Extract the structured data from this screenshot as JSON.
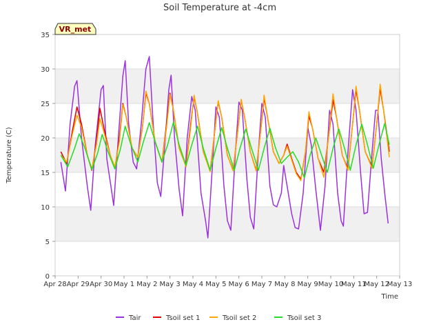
{
  "chart_data": {
    "type": "line",
    "title": "Soil Temperature at -4cm",
    "xlabel": "Time",
    "ylabel": "Temperature (C)",
    "badge": "VR_met",
    "ylim": [
      0,
      35
    ],
    "yticks": [
      0,
      5,
      10,
      15,
      20,
      25,
      30,
      35
    ],
    "xlim": [
      0,
      15
    ],
    "xticks": [
      {
        "v": 0,
        "label": "Apr 28"
      },
      {
        "v": 1,
        "label": "Apr 29"
      },
      {
        "v": 2,
        "label": "Apr 30"
      },
      {
        "v": 3,
        "label": "May 1"
      },
      {
        "v": 4,
        "label": "May 2"
      },
      {
        "v": 5,
        "label": "May 3"
      },
      {
        "v": 6,
        "label": "May 4"
      },
      {
        "v": 7,
        "label": "May 5"
      },
      {
        "v": 8,
        "label": "May 6"
      },
      {
        "v": 9,
        "label": "May 7"
      },
      {
        "v": 10,
        "label": "May 8"
      },
      {
        "v": 11,
        "label": "May 9"
      },
      {
        "v": 12,
        "label": "May 10"
      },
      {
        "v": 13,
        "label": "May 11"
      },
      {
        "v": 14,
        "label": "May 12"
      },
      {
        "v": 15,
        "label": "May 13"
      }
    ],
    "grid": true,
    "legend_position": "bottom",
    "series": [
      {
        "name": "Tair",
        "color": "#9b30e0",
        "points": [
          [
            0.25,
            16.5
          ],
          [
            0.45,
            12.3
          ],
          [
            0.65,
            22
          ],
          [
            0.85,
            27.5
          ],
          [
            0.95,
            28.3
          ],
          [
            1.15,
            20
          ],
          [
            1.4,
            13
          ],
          [
            1.55,
            9.5
          ],
          [
            1.75,
            19
          ],
          [
            2.0,
            27
          ],
          [
            2.1,
            27.6
          ],
          [
            2.25,
            17
          ],
          [
            2.45,
            12.5
          ],
          [
            2.55,
            10.2
          ],
          [
            2.75,
            20
          ],
          [
            2.95,
            29
          ],
          [
            3.05,
            31.2
          ],
          [
            3.2,
            22
          ],
          [
            3.4,
            16.5
          ],
          [
            3.55,
            15.5
          ],
          [
            3.75,
            22
          ],
          [
            3.95,
            30
          ],
          [
            4.1,
            31.8
          ],
          [
            4.25,
            23
          ],
          [
            4.45,
            13.5
          ],
          [
            4.6,
            11.5
          ],
          [
            4.8,
            20
          ],
          [
            4.95,
            27
          ],
          [
            5.05,
            29.1
          ],
          [
            5.2,
            20
          ],
          [
            5.4,
            12.5
          ],
          [
            5.55,
            8.7
          ],
          [
            5.75,
            20
          ],
          [
            5.95,
            26
          ],
          [
            6.1,
            24
          ],
          [
            6.35,
            12
          ],
          [
            6.55,
            8
          ],
          [
            6.65,
            5.5
          ],
          [
            6.85,
            16
          ],
          [
            7.0,
            24.5
          ],
          [
            7.15,
            23
          ],
          [
            7.35,
            13
          ],
          [
            7.5,
            8
          ],
          [
            7.65,
            6.6
          ],
          [
            7.85,
            18
          ],
          [
            8.0,
            25.2
          ],
          [
            8.15,
            24
          ],
          [
            8.35,
            14
          ],
          [
            8.5,
            8.5
          ],
          [
            8.65,
            6.8
          ],
          [
            8.85,
            18
          ],
          [
            9.0,
            25
          ],
          [
            9.15,
            23
          ],
          [
            9.35,
            13
          ],
          [
            9.5,
            10.3
          ],
          [
            9.65,
            10
          ],
          [
            9.85,
            12
          ],
          [
            9.95,
            16
          ],
          [
            10.1,
            13
          ],
          [
            10.3,
            9
          ],
          [
            10.45,
            7
          ],
          [
            10.6,
            6.8
          ],
          [
            10.8,
            12
          ],
          [
            11.0,
            21.5
          ],
          [
            11.15,
            19
          ],
          [
            11.35,
            12.5
          ],
          [
            11.55,
            6.6
          ],
          [
            11.75,
            13
          ],
          [
            11.95,
            24
          ],
          [
            12.1,
            22
          ],
          [
            12.3,
            12
          ],
          [
            12.45,
            8
          ],
          [
            12.55,
            7.2
          ],
          [
            12.75,
            18
          ],
          [
            12.95,
            27
          ],
          [
            13.1,
            24
          ],
          [
            13.3,
            15
          ],
          [
            13.45,
            9
          ],
          [
            13.6,
            9.2
          ],
          [
            13.8,
            18
          ],
          [
            13.95,
            24
          ],
          [
            14.05,
            24
          ],
          [
            14.2,
            17
          ],
          [
            14.35,
            12
          ],
          [
            14.5,
            7.6
          ]
        ]
      },
      {
        "name": "Tsoil set 1",
        "color": "#e00000",
        "points": [
          [
            0.25,
            18
          ],
          [
            0.5,
            16.3
          ],
          [
            0.75,
            21
          ],
          [
            0.95,
            24.5
          ],
          [
            1.15,
            22
          ],
          [
            1.4,
            17.5
          ],
          [
            1.6,
            15.3
          ],
          [
            1.8,
            19.5
          ],
          [
            1.95,
            24.3
          ],
          [
            2.15,
            21
          ],
          [
            2.4,
            17.5
          ],
          [
            2.6,
            15.6
          ],
          [
            2.8,
            20
          ],
          [
            2.95,
            25
          ],
          [
            3.1,
            23
          ],
          [
            3.35,
            18.5
          ],
          [
            3.6,
            17.2
          ],
          [
            3.8,
            21.5
          ],
          [
            3.95,
            26.5
          ],
          [
            4.1,
            25
          ],
          [
            4.35,
            19.5
          ],
          [
            4.65,
            16.5
          ],
          [
            4.85,
            22
          ],
          [
            5.0,
            26.5
          ],
          [
            5.15,
            24
          ],
          [
            5.4,
            18.5
          ],
          [
            5.7,
            16
          ],
          [
            5.9,
            22
          ],
          [
            6.05,
            26
          ],
          [
            6.2,
            23.5
          ],
          [
            6.45,
            18
          ],
          [
            6.75,
            15.2
          ],
          [
            6.95,
            21
          ],
          [
            7.1,
            25.3
          ],
          [
            7.25,
            23
          ],
          [
            7.5,
            17.5
          ],
          [
            7.75,
            15.3
          ],
          [
            7.95,
            21
          ],
          [
            8.1,
            25.5
          ],
          [
            8.25,
            23
          ],
          [
            8.5,
            18
          ],
          [
            8.75,
            15.3
          ],
          [
            8.95,
            21
          ],
          [
            9.1,
            25.8
          ],
          [
            9.25,
            23
          ],
          [
            9.5,
            18
          ],
          [
            9.75,
            16.3
          ],
          [
            9.95,
            17.5
          ],
          [
            10.1,
            19.1
          ],
          [
            10.3,
            17
          ],
          [
            10.5,
            15
          ],
          [
            10.7,
            14
          ],
          [
            10.9,
            18
          ],
          [
            11.05,
            23.2
          ],
          [
            11.2,
            21.5
          ],
          [
            11.45,
            17
          ],
          [
            11.7,
            15
          ],
          [
            11.9,
            20
          ],
          [
            12.1,
            25.5
          ],
          [
            12.25,
            23
          ],
          [
            12.5,
            17.5
          ],
          [
            12.75,
            15.5
          ],
          [
            12.95,
            22
          ],
          [
            13.1,
            27
          ],
          [
            13.25,
            24
          ],
          [
            13.5,
            18
          ],
          [
            13.8,
            15.8
          ],
          [
            14.0,
            22
          ],
          [
            14.15,
            27.2
          ],
          [
            14.3,
            24
          ],
          [
            14.55,
            18
          ]
        ]
      },
      {
        "name": "Tsoil set 2",
        "color": "#ffa500",
        "points": [
          [
            0.25,
            17.5
          ],
          [
            0.5,
            16.5
          ],
          [
            0.75,
            20.5
          ],
          [
            0.95,
            23.3
          ],
          [
            1.15,
            21.5
          ],
          [
            1.4,
            17.5
          ],
          [
            1.6,
            15.5
          ],
          [
            1.8,
            19
          ],
          [
            1.95,
            22.8
          ],
          [
            2.15,
            20.5
          ],
          [
            2.4,
            17.5
          ],
          [
            2.6,
            15.8
          ],
          [
            2.8,
            19.5
          ],
          [
            2.95,
            24.8
          ],
          [
            3.1,
            23
          ],
          [
            3.35,
            18.5
          ],
          [
            3.6,
            17.2
          ],
          [
            3.8,
            21.5
          ],
          [
            3.95,
            26.8
          ],
          [
            4.1,
            25
          ],
          [
            4.35,
            19.5
          ],
          [
            4.65,
            16.5
          ],
          [
            4.85,
            21.5
          ],
          [
            5.0,
            26.3
          ],
          [
            5.15,
            24
          ],
          [
            5.4,
            18.5
          ],
          [
            5.7,
            15.8
          ],
          [
            5.9,
            21.5
          ],
          [
            6.05,
            26.2
          ],
          [
            6.2,
            23.5
          ],
          [
            6.45,
            18
          ],
          [
            6.75,
            15.1
          ],
          [
            6.95,
            21
          ],
          [
            7.1,
            25.4
          ],
          [
            7.25,
            23
          ],
          [
            7.5,
            17.5
          ],
          [
            7.75,
            15.2
          ],
          [
            7.95,
            21
          ],
          [
            8.1,
            25.6
          ],
          [
            8.25,
            23
          ],
          [
            8.5,
            18
          ],
          [
            8.75,
            15.2
          ],
          [
            8.95,
            21
          ],
          [
            9.1,
            26.2
          ],
          [
            9.25,
            23
          ],
          [
            9.5,
            18
          ],
          [
            9.75,
            16.3
          ],
          [
            9.95,
            17.5
          ],
          [
            10.1,
            18.8
          ],
          [
            10.3,
            16.8
          ],
          [
            10.5,
            14.8
          ],
          [
            10.7,
            13.8
          ],
          [
            10.9,
            18
          ],
          [
            11.05,
            23.8
          ],
          [
            11.2,
            21.5
          ],
          [
            11.45,
            17
          ],
          [
            11.7,
            14.3
          ],
          [
            11.9,
            20
          ],
          [
            12.1,
            26.4
          ],
          [
            12.25,
            23
          ],
          [
            12.5,
            17.5
          ],
          [
            12.75,
            15.3
          ],
          [
            12.95,
            22
          ],
          [
            13.1,
            27.5
          ],
          [
            13.25,
            24
          ],
          [
            13.5,
            18
          ],
          [
            13.8,
            15.6
          ],
          [
            14.0,
            22
          ],
          [
            14.15,
            27.8
          ],
          [
            14.3,
            24
          ],
          [
            14.55,
            17.2
          ]
        ]
      },
      {
        "name": "Tsoil set 3",
        "color": "#22dd22",
        "points": [
          [
            0.25,
            17.5
          ],
          [
            0.55,
            15.8
          ],
          [
            0.85,
            18.5
          ],
          [
            1.05,
            20.6
          ],
          [
            1.3,
            18.5
          ],
          [
            1.6,
            15.4
          ],
          [
            1.85,
            17.8
          ],
          [
            2.05,
            20.5
          ],
          [
            2.3,
            18
          ],
          [
            2.6,
            15.5
          ],
          [
            2.85,
            18.5
          ],
          [
            3.05,
            21.7
          ],
          [
            3.3,
            19
          ],
          [
            3.6,
            16.5
          ],
          [
            3.85,
            19.5
          ],
          [
            4.1,
            22.2
          ],
          [
            4.35,
            19.5
          ],
          [
            4.65,
            16.5
          ],
          [
            4.9,
            19
          ],
          [
            5.15,
            22.3
          ],
          [
            5.4,
            19
          ],
          [
            5.7,
            16
          ],
          [
            5.95,
            19
          ],
          [
            6.2,
            21.7
          ],
          [
            6.45,
            18.5
          ],
          [
            6.75,
            15.3
          ],
          [
            7.0,
            18.5
          ],
          [
            7.25,
            21.5
          ],
          [
            7.5,
            18.5
          ],
          [
            7.8,
            15.3
          ],
          [
            8.05,
            18.5
          ],
          [
            8.3,
            21.3
          ],
          [
            8.55,
            18.5
          ],
          [
            8.85,
            15.3
          ],
          [
            9.1,
            18.5
          ],
          [
            9.35,
            21.4
          ],
          [
            9.6,
            18.5
          ],
          [
            9.85,
            16.3
          ],
          [
            10.1,
            17.2
          ],
          [
            10.35,
            18
          ],
          [
            10.6,
            16.5
          ],
          [
            10.85,
            14.2
          ],
          [
            11.1,
            17.5
          ],
          [
            11.35,
            20
          ],
          [
            11.6,
            17.5
          ],
          [
            11.85,
            15
          ],
          [
            12.1,
            18.5
          ],
          [
            12.35,
            21.3
          ],
          [
            12.6,
            18.5
          ],
          [
            12.85,
            15.3
          ],
          [
            13.1,
            19
          ],
          [
            13.35,
            22
          ],
          [
            13.6,
            19
          ],
          [
            13.85,
            15.6
          ],
          [
            14.1,
            19
          ],
          [
            14.35,
            22.1
          ],
          [
            14.55,
            19
          ]
        ]
      }
    ]
  }
}
